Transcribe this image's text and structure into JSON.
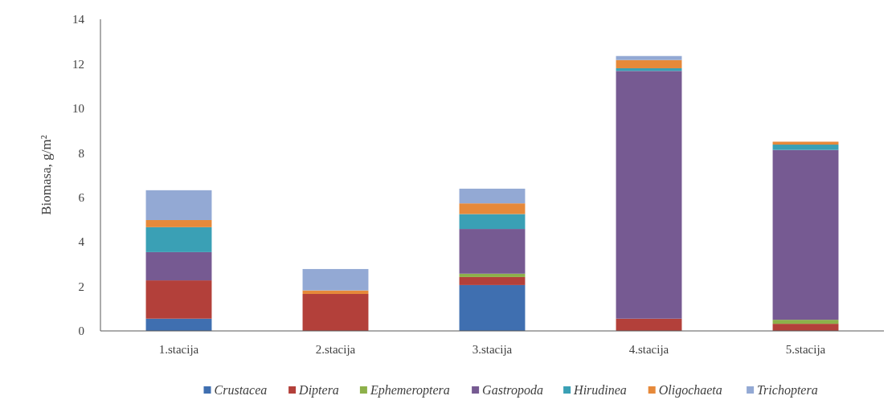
{
  "chart_data": {
    "type": "bar",
    "stacked": true,
    "ylabel": "Biomasa, g/m²",
    "categories": [
      "1.stacija",
      "2.stacija",
      "3.stacija",
      "4.stacija",
      "5.stacija"
    ],
    "ylim": [
      0,
      14
    ],
    "yticks": [
      0,
      2,
      4,
      6,
      8,
      10,
      12,
      14
    ],
    "grid": false,
    "legend": "bottom",
    "series": [
      {
        "name": "Crustacea",
        "color": "#3f6fb0",
        "values": [
          0.55,
          0,
          2.06,
          0,
          0
        ]
      },
      {
        "name": "Diptera",
        "color": "#b3403a",
        "values": [
          1.72,
          1.66,
          0.36,
          0.55,
          0.32
        ]
      },
      {
        "name": "Ephemeroptera",
        "color": "#8db04a",
        "values": [
          0,
          0,
          0.15,
          0,
          0.18
        ]
      },
      {
        "name": "Gastropoda",
        "color": "#765a92",
        "values": [
          1.27,
          0,
          2.01,
          11.13,
          7.63
        ]
      },
      {
        "name": "Hirudinea",
        "color": "#3aa0b5",
        "values": [
          1.12,
          0,
          0.67,
          0.12,
          0.24
        ]
      },
      {
        "name": "Oligochaeta",
        "color": "#e6893a",
        "values": [
          0.32,
          0.16,
          0.48,
          0.37,
          0.13
        ]
      },
      {
        "name": "Trichoptera",
        "color": "#93a9d4",
        "values": [
          1.34,
          0.96,
          0.66,
          0.18,
          0
        ]
      }
    ]
  }
}
